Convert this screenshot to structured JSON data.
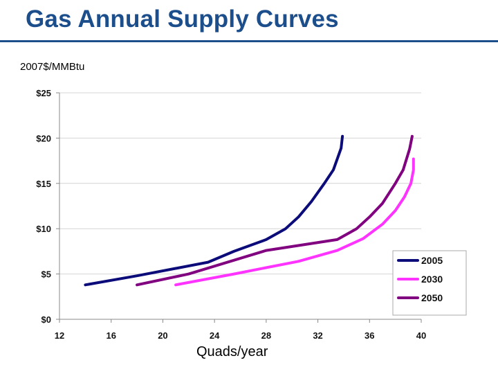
{
  "slide": {
    "title": "Gas Annual Supply Curves",
    "units_label": "2007$/MMBtu"
  },
  "chart_data": {
    "type": "line",
    "title": "Gas Annual Supply Curves",
    "ylabel": "2007$/MMBtu",
    "xlabel": "Quads/year",
    "xlim": [
      12,
      40
    ],
    "ylim": [
      0,
      25
    ],
    "x_ticks": [
      12,
      16,
      20,
      24,
      28,
      32,
      36,
      40
    ],
    "x_tick_labels": [
      "12",
      "16",
      "20",
      "24",
      "28",
      "32",
      "36",
      "40"
    ],
    "y_ticks": [
      0,
      5,
      10,
      15,
      20,
      25
    ],
    "y_tick_labels": [
      "$0",
      "$5",
      "$10",
      "$15",
      "$20",
      "$25"
    ],
    "legend_position": "bottom-right",
    "series": [
      {
        "name": "2005",
        "color": "#0b0b7a",
        "points": [
          [
            14.0,
            3.8
          ],
          [
            18.0,
            4.8
          ],
          [
            23.5,
            6.3
          ],
          [
            25.5,
            7.5
          ],
          [
            28.0,
            8.8
          ],
          [
            29.5,
            10.0
          ],
          [
            30.5,
            11.3
          ],
          [
            31.5,
            13.0
          ],
          [
            32.5,
            15.0
          ],
          [
            33.2,
            16.5
          ],
          [
            33.8,
            18.9
          ],
          [
            33.9,
            20.2
          ]
        ]
      },
      {
        "name": "2030",
        "color": "#ff33ff",
        "points": [
          [
            21.0,
            3.8
          ],
          [
            25.5,
            5.0
          ],
          [
            30.5,
            6.4
          ],
          [
            33.5,
            7.6
          ],
          [
            35.5,
            8.9
          ],
          [
            37.0,
            10.5
          ],
          [
            38.0,
            12.0
          ],
          [
            38.7,
            13.5
          ],
          [
            39.2,
            15.0
          ],
          [
            39.4,
            16.5
          ],
          [
            39.4,
            17.7
          ]
        ]
      },
      {
        "name": "2050",
        "color": "#800080",
        "points": [
          [
            18.0,
            3.8
          ],
          [
            22.0,
            5.0
          ],
          [
            28.0,
            7.6
          ],
          [
            33.5,
            8.8
          ],
          [
            35.0,
            10.0
          ],
          [
            36.0,
            11.3
          ],
          [
            37.0,
            12.8
          ],
          [
            38.0,
            15.0
          ],
          [
            38.6,
            16.5
          ],
          [
            39.1,
            18.8
          ],
          [
            39.3,
            20.2
          ]
        ]
      }
    ]
  }
}
